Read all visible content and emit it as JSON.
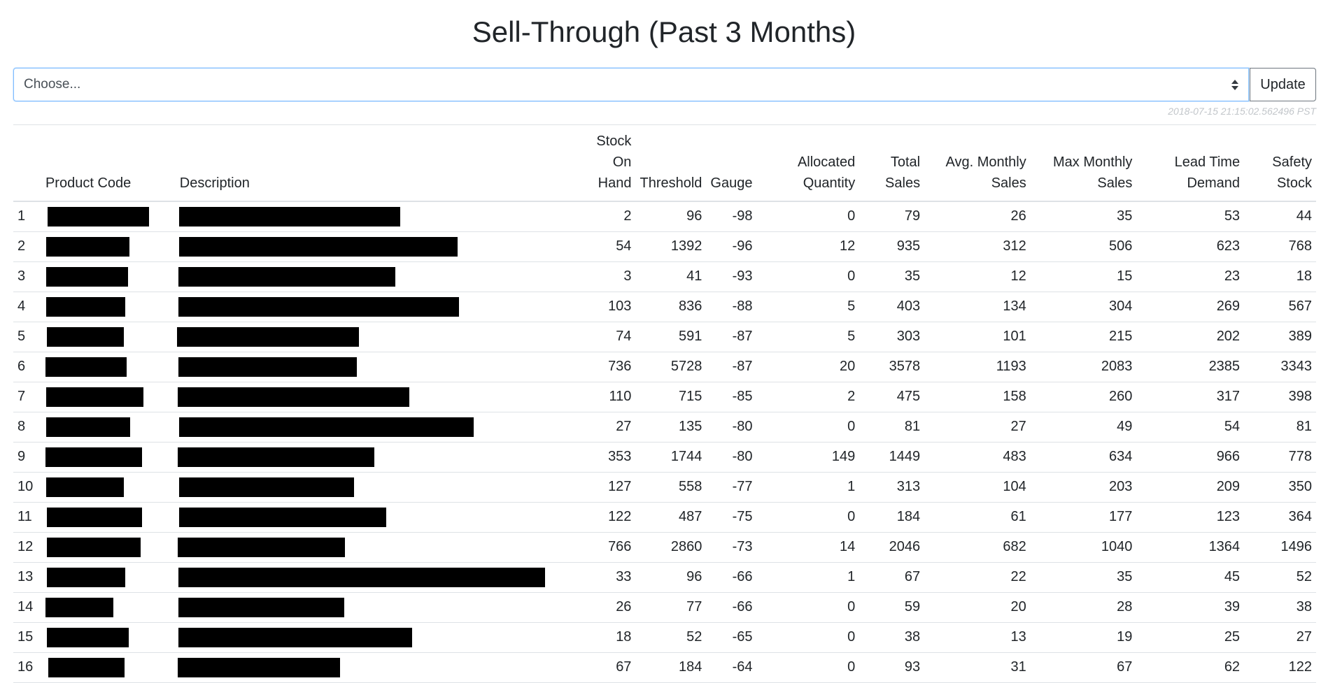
{
  "page": {
    "title": "Sell-Through (Past 3 Months)"
  },
  "controls": {
    "select_placeholder": "Choose...",
    "update_label": "Update"
  },
  "timestamp": "2018-07-15 21:15:02.562496 PST",
  "table": {
    "headers": {
      "idx": "",
      "product_code": "Product Code",
      "description": "Description",
      "stock_on_hand_1": "Stock On",
      "stock_on_hand_2": "Hand",
      "threshold": "Threshold",
      "gauge": "Gauge",
      "allocated_1": "Allocated",
      "allocated_2": "Quantity",
      "total_sales_1": "Total",
      "total_sales_2": "Sales",
      "avg_monthly_1": "Avg. Monthly",
      "avg_monthly_2": "Sales",
      "max_monthly_1": "Max Monthly",
      "max_monthly_2": "Sales",
      "lead_time_1": "Lead Time",
      "lead_time_2": "Demand",
      "safety_1": "Safety",
      "safety_2": "Stock"
    },
    "redaction_note": "Product code and description cells are redacted with black boxes",
    "rows": [
      {
        "idx": "1",
        "stock": "2",
        "threshold": "96",
        "gauge": "-98",
        "allocated": "0",
        "total": "79",
        "avg": "26",
        "max": "35",
        "lead": "53",
        "safety": "44"
      },
      {
        "idx": "2",
        "stock": "54",
        "threshold": "1392",
        "gauge": "-96",
        "allocated": "12",
        "total": "935",
        "avg": "312",
        "max": "506",
        "lead": "623",
        "safety": "768"
      },
      {
        "idx": "3",
        "stock": "3",
        "threshold": "41",
        "gauge": "-93",
        "allocated": "0",
        "total": "35",
        "avg": "12",
        "max": "15",
        "lead": "23",
        "safety": "18"
      },
      {
        "idx": "4",
        "stock": "103",
        "threshold": "836",
        "gauge": "-88",
        "allocated": "5",
        "total": "403",
        "avg": "134",
        "max": "304",
        "lead": "269",
        "safety": "567"
      },
      {
        "idx": "5",
        "stock": "74",
        "threshold": "591",
        "gauge": "-87",
        "allocated": "5",
        "total": "303",
        "avg": "101",
        "max": "215",
        "lead": "202",
        "safety": "389"
      },
      {
        "idx": "6",
        "stock": "736",
        "threshold": "5728",
        "gauge": "-87",
        "allocated": "20",
        "total": "3578",
        "avg": "1193",
        "max": "2083",
        "lead": "2385",
        "safety": "3343"
      },
      {
        "idx": "7",
        "stock": "110",
        "threshold": "715",
        "gauge": "-85",
        "allocated": "2",
        "total": "475",
        "avg": "158",
        "max": "260",
        "lead": "317",
        "safety": "398"
      },
      {
        "idx": "8",
        "stock": "27",
        "threshold": "135",
        "gauge": "-80",
        "allocated": "0",
        "total": "81",
        "avg": "27",
        "max": "49",
        "lead": "54",
        "safety": "81"
      },
      {
        "idx": "9",
        "stock": "353",
        "threshold": "1744",
        "gauge": "-80",
        "allocated": "149",
        "total": "1449",
        "avg": "483",
        "max": "634",
        "lead": "966",
        "safety": "778"
      },
      {
        "idx": "10",
        "stock": "127",
        "threshold": "558",
        "gauge": "-77",
        "allocated": "1",
        "total": "313",
        "avg": "104",
        "max": "203",
        "lead": "209",
        "safety": "350"
      },
      {
        "idx": "11",
        "stock": "122",
        "threshold": "487",
        "gauge": "-75",
        "allocated": "0",
        "total": "184",
        "avg": "61",
        "max": "177",
        "lead": "123",
        "safety": "364"
      },
      {
        "idx": "12",
        "stock": "766",
        "threshold": "2860",
        "gauge": "-73",
        "allocated": "14",
        "total": "2046",
        "avg": "682",
        "max": "1040",
        "lead": "1364",
        "safety": "1496"
      },
      {
        "idx": "13",
        "stock": "33",
        "threshold": "96",
        "gauge": "-66",
        "allocated": "1",
        "total": "67",
        "avg": "22",
        "max": "35",
        "lead": "45",
        "safety": "52"
      },
      {
        "idx": "14",
        "stock": "26",
        "threshold": "77",
        "gauge": "-66",
        "allocated": "0",
        "total": "59",
        "avg": "20",
        "max": "28",
        "lead": "39",
        "safety": "38"
      },
      {
        "idx": "15",
        "stock": "18",
        "threshold": "52",
        "gauge": "-65",
        "allocated": "0",
        "total": "38",
        "avg": "13",
        "max": "19",
        "lead": "25",
        "safety": "27"
      },
      {
        "idx": "16",
        "stock": "67",
        "threshold": "184",
        "gauge": "-64",
        "allocated": "0",
        "total": "93",
        "avg": "31",
        "max": "67",
        "lead": "62",
        "safety": "122"
      }
    ]
  }
}
